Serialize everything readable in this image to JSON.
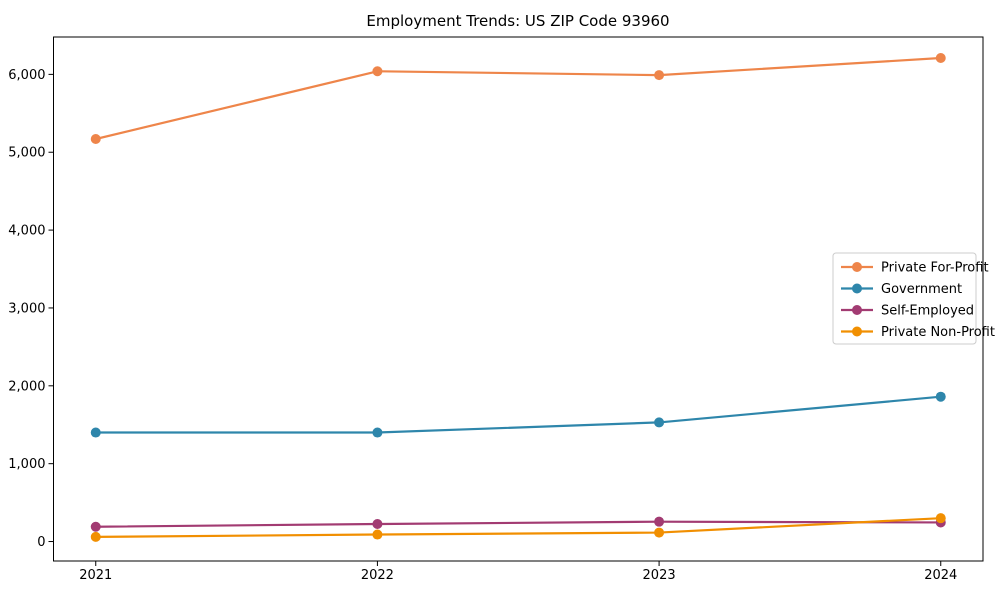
{
  "chart_data": {
    "type": "line",
    "title": "Employment Trends: US ZIP Code 93960",
    "x": [
      2021,
      2022,
      2023,
      2024
    ],
    "x_tick_labels": [
      "2021",
      "2022",
      "2023",
      "2024"
    ],
    "y_ticks": [
      0,
      1000,
      2000,
      3000,
      4000,
      5000,
      6000
    ],
    "y_tick_labels": [
      "0",
      "1,000",
      "2,000",
      "3,000",
      "4,000",
      "5,000",
      "6,000"
    ],
    "xlim": [
      2020.85,
      2024.15
    ],
    "ylim": [
      -250,
      6480
    ],
    "grid": false,
    "legend_position": "center right",
    "background_color": "#ffffff",
    "axis_color": "#000000",
    "legend_border_color": "#cccccc",
    "series": [
      {
        "name": "Private For-Profit",
        "color": "#ee854a",
        "values": [
          5170,
          6040,
          5990,
          6210
        ]
      },
      {
        "name": "Government",
        "color": "#2e86ab",
        "values": [
          1400,
          1400,
          1530,
          1860
        ]
      },
      {
        "name": "Self-Employed",
        "color": "#a23b72",
        "values": [
          190,
          225,
          255,
          245
        ]
      },
      {
        "name": "Private Non-Profit",
        "color": "#f18f01",
        "values": [
          60,
          90,
          115,
          300
        ]
      }
    ]
  }
}
